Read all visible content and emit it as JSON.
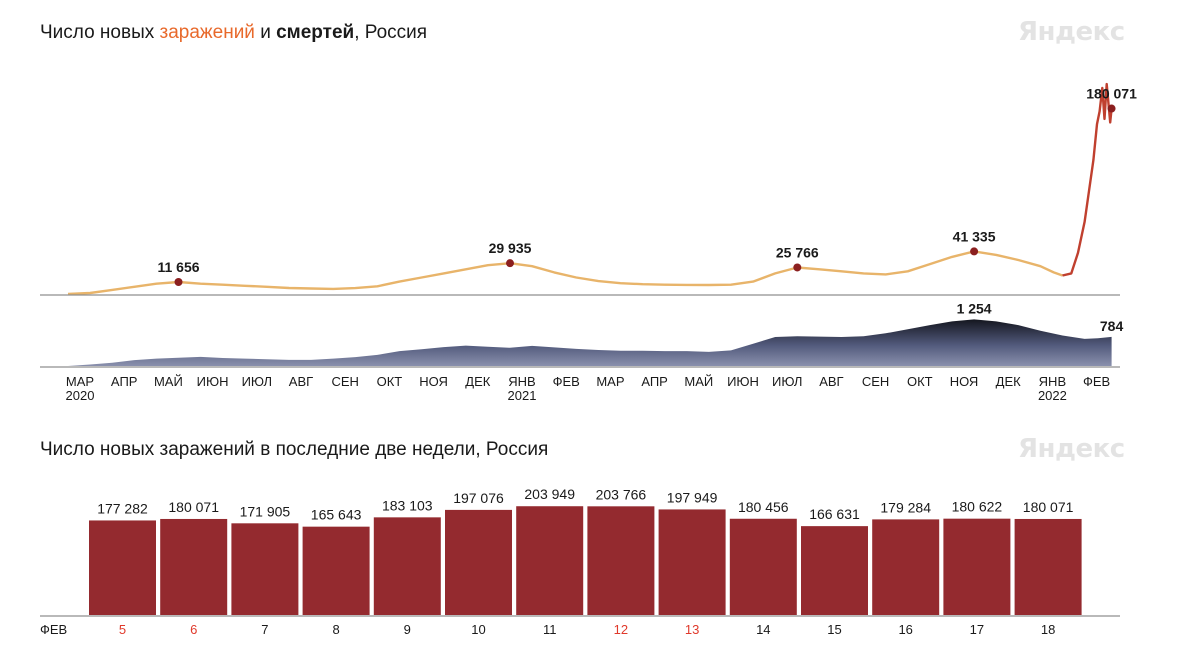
{
  "chart1": {
    "title_pre": "Число новых ",
    "title_infections": "заражений",
    "title_mid": " и ",
    "title_deaths": "смертей",
    "title_post": ", Россия",
    "logo": "Яндекс"
  },
  "chart2": {
    "title": "Число новых заражений в последние две недели, Россия",
    "logo": "Яндекс"
  },
  "colors": {
    "infections_line": "#e8b46a",
    "infections_line_recent": "#c0402f",
    "deaths_area": "#525a7c",
    "deaths_peak": "#14161f",
    "bar": "#942a2f",
    "marker": "#8b1f1f",
    "weekend_label": "#e0392b"
  },
  "chart_data": [
    {
      "type": "line",
      "series_key": "infections",
      "x_unit": "months since 2020-03",
      "x_tick_labels": [
        {
          "m": 0,
          "label": "МАР",
          "year": "2020"
        },
        {
          "m": 1,
          "label": "АПР"
        },
        {
          "m": 2,
          "label": "МАЙ"
        },
        {
          "m": 3,
          "label": "ИЮН"
        },
        {
          "m": 4,
          "label": "ИЮЛ"
        },
        {
          "m": 5,
          "label": "АВГ"
        },
        {
          "m": 6,
          "label": "СЕН"
        },
        {
          "m": 7,
          "label": "ОКТ"
        },
        {
          "m": 8,
          "label": "НОЯ"
        },
        {
          "m": 9,
          "label": "ДЕК"
        },
        {
          "m": 10,
          "label": "ЯНВ",
          "year": "2021"
        },
        {
          "m": 11,
          "label": "ФЕВ"
        },
        {
          "m": 12,
          "label": "МАР"
        },
        {
          "m": 13,
          "label": "АПР"
        },
        {
          "m": 14,
          "label": "МАЙ"
        },
        {
          "m": 15,
          "label": "ИЮН"
        },
        {
          "m": 16,
          "label": "ИЮЛ"
        },
        {
          "m": 17,
          "label": "АВГ"
        },
        {
          "m": 18,
          "label": "СЕН"
        },
        {
          "m": 19,
          "label": "ОКТ"
        },
        {
          "m": 20,
          "label": "НОЯ"
        },
        {
          "m": 21,
          "label": "ДЕК"
        },
        {
          "m": 22,
          "label": "ЯНВ",
          "year": "2022"
        },
        {
          "m": 23,
          "label": "ФЕВ"
        }
      ],
      "ylim": [
        0,
        200000
      ],
      "points": [
        [
          0.0,
          50
        ],
        [
          0.5,
          1000
        ],
        [
          1.0,
          4000
        ],
        [
          1.5,
          7000
        ],
        [
          2.0,
          10000
        ],
        [
          2.5,
          11656
        ],
        [
          3.0,
          10000
        ],
        [
          3.5,
          9000
        ],
        [
          4.0,
          8000
        ],
        [
          4.5,
          7000
        ],
        [
          5.0,
          5800
        ],
        [
          5.5,
          5300
        ],
        [
          6.0,
          5000
        ],
        [
          6.5,
          5700
        ],
        [
          7.0,
          7500
        ],
        [
          7.5,
          12000
        ],
        [
          8.0,
          16000
        ],
        [
          8.5,
          20000
        ],
        [
          9.0,
          24000
        ],
        [
          9.5,
          28000
        ],
        [
          10.0,
          29935
        ],
        [
          10.5,
          27000
        ],
        [
          11.0,
          21000
        ],
        [
          11.5,
          16000
        ],
        [
          12.0,
          12500
        ],
        [
          12.5,
          10500
        ],
        [
          13.0,
          9500
        ],
        [
          13.5,
          9000
        ],
        [
          14.0,
          8800
        ],
        [
          14.5,
          8700
        ],
        [
          15.0,
          9000
        ],
        [
          15.5,
          12000
        ],
        [
          16.0,
          20000
        ],
        [
          16.5,
          25766
        ],
        [
          17.0,
          24000
        ],
        [
          17.5,
          22000
        ],
        [
          18.0,
          20000
        ],
        [
          18.5,
          19000
        ],
        [
          19.0,
          22000
        ],
        [
          19.5,
          29000
        ],
        [
          20.0,
          36000
        ],
        [
          20.5,
          41335
        ],
        [
          21.0,
          38000
        ],
        [
          21.5,
          33000
        ],
        [
          22.0,
          27000
        ],
        [
          22.3,
          21000
        ],
        [
          22.5,
          18000
        ],
        [
          22.7,
          20000
        ],
        [
          22.85,
          40000
        ],
        [
          23.0,
          70000
        ],
        [
          23.1,
          100000
        ],
        [
          23.2,
          130000
        ],
        [
          23.28,
          165000
        ],
        [
          23.34,
          177282
        ],
        [
          23.4,
          200000
        ],
        [
          23.45,
          170000
        ],
        [
          23.5,
          203766
        ],
        [
          23.55,
          180456
        ],
        [
          23.58,
          166631
        ],
        [
          23.61,
          180071
        ]
      ],
      "recent_from_m": 22.6,
      "annotations": [
        {
          "m": 2.5,
          "value": 11656,
          "label": "11 656"
        },
        {
          "m": 10.0,
          "value": 29935,
          "label": "29 935"
        },
        {
          "m": 16.5,
          "value": 25766,
          "label": "25 766"
        },
        {
          "m": 20.5,
          "value": 41335,
          "label": "41 335"
        },
        {
          "m": 23.61,
          "value": 180071,
          "label": "180 071"
        }
      ]
    },
    {
      "type": "area",
      "series_key": "deaths",
      "x_unit": "months since 2020-03",
      "ylim": [
        0,
        1300
      ],
      "points": [
        [
          0.0,
          0
        ],
        [
          0.5,
          40
        ],
        [
          1.0,
          90
        ],
        [
          1.5,
          160
        ],
        [
          2.0,
          200
        ],
        [
          2.5,
          220
        ],
        [
          3.0,
          245
        ],
        [
          3.5,
          215
        ],
        [
          4.0,
          200
        ],
        [
          4.5,
          180
        ],
        [
          5.0,
          165
        ],
        [
          5.5,
          165
        ],
        [
          6.0,
          200
        ],
        [
          6.5,
          240
        ],
        [
          7.0,
          300
        ],
        [
          7.5,
          400
        ],
        [
          8.0,
          450
        ],
        [
          8.5,
          510
        ],
        [
          9.0,
          550
        ],
        [
          9.5,
          520
        ],
        [
          10.0,
          490
        ],
        [
          10.5,
          540
        ],
        [
          11.0,
          500
        ],
        [
          11.5,
          460
        ],
        [
          12.0,
          430
        ],
        [
          12.5,
          410
        ],
        [
          13.0,
          410
        ],
        [
          13.5,
          400
        ],
        [
          14.0,
          400
        ],
        [
          14.5,
          380
        ],
        [
          15.0,
          420
        ],
        [
          15.5,
          600
        ],
        [
          16.0,
          780
        ],
        [
          16.5,
          800
        ],
        [
          17.0,
          790
        ],
        [
          17.5,
          780
        ],
        [
          18.0,
          800
        ],
        [
          18.5,
          880
        ],
        [
          19.0,
          990
        ],
        [
          19.5,
          1100
        ],
        [
          20.0,
          1200
        ],
        [
          20.5,
          1254
        ],
        [
          21.0,
          1200
        ],
        [
          21.5,
          1100
        ],
        [
          22.0,
          950
        ],
        [
          22.5,
          820
        ],
        [
          23.0,
          730
        ],
        [
          23.3,
          745
        ],
        [
          23.61,
          784
        ]
      ],
      "annotations": [
        {
          "m": 20.5,
          "value": 1254,
          "label": "1 254"
        },
        {
          "m": 23.61,
          "value": 784,
          "label": "784"
        }
      ]
    },
    {
      "type": "bar",
      "series_key": "last_two_weeks",
      "month_label": "ФЕВ",
      "ylim": [
        0,
        210000
      ],
      "categories": [
        "5",
        "6",
        "7",
        "8",
        "9",
        "10",
        "11",
        "12",
        "13",
        "14",
        "15",
        "16",
        "17",
        "18"
      ],
      "values": [
        177282,
        180071,
        171905,
        165643,
        183103,
        197076,
        203949,
        203766,
        197949,
        180456,
        166631,
        179284,
        180622,
        180071
      ],
      "value_labels": [
        "177 282",
        "180 071",
        "171 905",
        "165 643",
        "183 103",
        "197 076",
        "203 949",
        "203 766",
        "197 949",
        "180 456",
        "166 631",
        "179 284",
        "180 622",
        "180 071"
      ],
      "weekend": [
        true,
        true,
        false,
        false,
        false,
        false,
        false,
        true,
        true,
        false,
        false,
        false,
        false,
        false
      ]
    }
  ]
}
